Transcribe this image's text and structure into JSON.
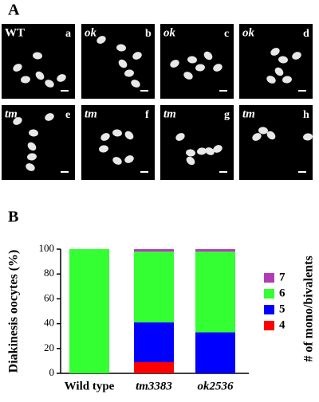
{
  "panel_a": {
    "label": "A",
    "images": [
      {
        "strain": "WT",
        "letter": "a"
      },
      {
        "strain": "ok",
        "letter": "b"
      },
      {
        "strain": "ok",
        "letter": "c"
      },
      {
        "strain": "ok",
        "letter": "d"
      },
      {
        "strain": "tm",
        "letter": "e"
      },
      {
        "strain": "tm",
        "letter": "f"
      },
      {
        "strain": "tm",
        "letter": "g"
      },
      {
        "strain": "tm",
        "letter": "h"
      }
    ]
  },
  "panel_b_label": "B",
  "chart_data": {
    "type": "bar",
    "stacked": true,
    "ylabel": "Diakinesis oocytes (%)",
    "legend_title": "# of mono/bivalents",
    "categories": [
      "Wild type",
      "tm3383",
      "ok2536"
    ],
    "series": [
      {
        "name": "4",
        "color": "#ff0000",
        "values": [
          0,
          9,
          0
        ]
      },
      {
        "name": "5",
        "color": "#0000ff",
        "values": [
          0,
          32,
          33
        ]
      },
      {
        "name": "6",
        "color": "#33ff33",
        "values": [
          100,
          57,
          65
        ]
      },
      {
        "name": "7",
        "color": "#b23cb8",
        "values": [
          0,
          2,
          2
        ]
      }
    ],
    "ylim": [
      0,
      100
    ],
    "yticks": [
      0,
      20,
      40,
      60,
      80,
      100
    ]
  }
}
